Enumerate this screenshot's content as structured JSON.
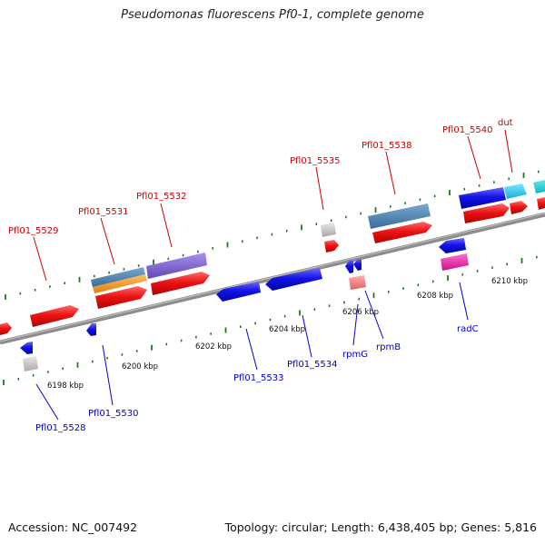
{
  "title": "Pseudomonas fluorescens Pf0-1, complete genome",
  "footer": {
    "accession": "Accession: NC_007492",
    "topology": "Topology: circular; Length: 6,438,405 bp; Genes: 5,816"
  },
  "colors": {
    "backbone": "#8a8a8a",
    "tick": "#1e7a1e",
    "forward_label": "#cc0000",
    "reverse_label": "#0000cc",
    "tick_label": "#111111"
  },
  "tick_labels": [
    {
      "kbp": 6198,
      "text": "6198 kbp"
    },
    {
      "kbp": 6200,
      "text": "6200 kbp"
    },
    {
      "kbp": 6202,
      "text": "6202 kbp"
    },
    {
      "kbp": 6204,
      "text": "6204 kbp"
    },
    {
      "kbp": 6206,
      "text": "6206 kbp"
    },
    {
      "kbp": 6208,
      "text": "6208 kbp"
    },
    {
      "kbp": 6210,
      "text": "6210 kbp"
    }
  ],
  "gene_labels": [
    {
      "text": "Pfl01_5529",
      "strand": "forward"
    },
    {
      "text": "Pfl01_5531",
      "strand": "forward"
    },
    {
      "text": "Pfl01_5532",
      "strand": "forward"
    },
    {
      "text": "Pfl01_5535",
      "strand": "forward"
    },
    {
      "text": "Pfl01_5538",
      "strand": "forward"
    },
    {
      "text": "Pfl01_5540",
      "strand": "forward"
    },
    {
      "text": "dut",
      "strand": "forward"
    },
    {
      "text": "Pfl01_5528",
      "strand": "reverse"
    },
    {
      "text": "Pfl01_5530",
      "strand": "reverse"
    },
    {
      "text": "Pfl01_5533",
      "strand": "reverse"
    },
    {
      "text": "Pfl01_5534",
      "strand": "reverse"
    },
    {
      "text": "rpmG",
      "strand": "reverse"
    },
    {
      "text": "rpmB",
      "strand": "reverse"
    },
    {
      "text": "radC",
      "strand": "reverse"
    }
  ],
  "features": [
    {
      "name": "forward-gene",
      "color": "#e81010"
    },
    {
      "name": "reverse-gene",
      "color": "#1414e0"
    },
    {
      "name": "pseudogene",
      "color": "#c0c0c0"
    },
    {
      "name": "steelblue-feature",
      "color": "#4a7fb0"
    },
    {
      "name": "orange-feature",
      "color": "#f39a1a"
    },
    {
      "name": "purple-feature",
      "color": "#7a5ccc"
    },
    {
      "name": "cyan-feature",
      "color": "#19c8ee"
    },
    {
      "name": "magenta-feature",
      "color": "#e020a0"
    },
    {
      "name": "salmon-feature",
      "color": "#f08080"
    }
  ]
}
